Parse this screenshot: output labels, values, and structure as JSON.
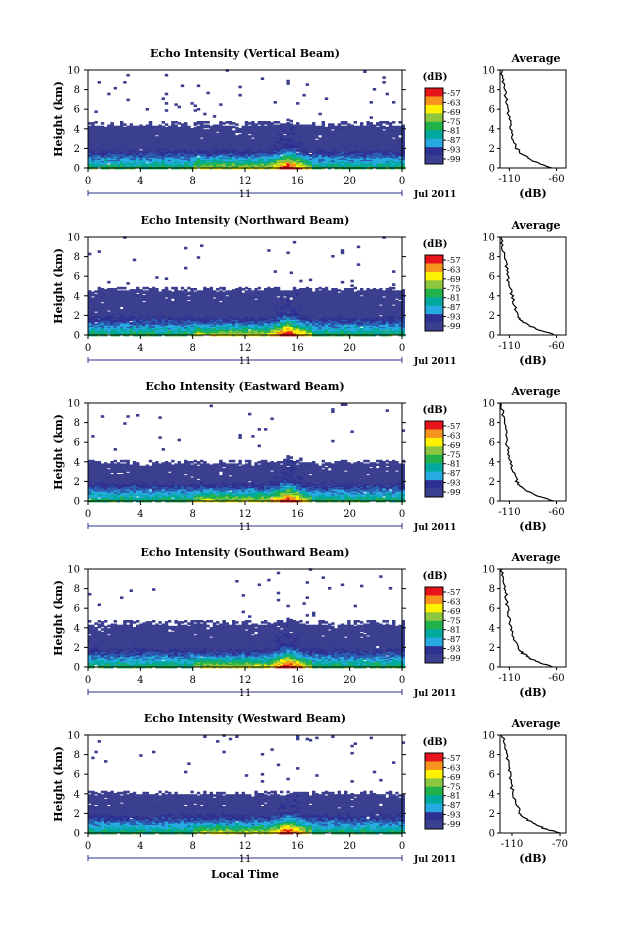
{
  "colorbar": {
    "unit_label": "(dB)",
    "tick_labels": [
      "-57",
      "-63",
      "-69",
      "-75",
      "-81",
      "-87",
      "-93",
      "-99"
    ],
    "colors": [
      "#e8141c",
      "#f7941d",
      "#fff200",
      "#8dc63f",
      "#22b24c",
      "#00a99d",
      "#27aae1",
      "#2e3192",
      "#3b3f8f"
    ]
  },
  "shared_axis": {
    "x_tick_labels": [
      "0",
      "4",
      "8",
      "12",
      "16",
      "20",
      "0"
    ],
    "date_day_label": "11",
    "date_month_label": "Jul 2011",
    "y_label": "Height (km)",
    "y_tick_labels": [
      "0",
      "2",
      "4",
      "6",
      "8",
      "10"
    ],
    "avg_title": "Average",
    "avg_xlabel": "(dB)",
    "x_axis_title": "Local Time"
  },
  "chart_data": [
    {
      "type": "heatmap",
      "title": "Echo Intensity (Vertical Beam)",
      "xlim": [
        0,
        24
      ],
      "ylim": [
        0,
        10
      ],
      "peak": {
        "x": 15.2,
        "y": 4.6
      },
      "layer_top_km": 4.3,
      "average_profile": {
        "type": "line",
        "xlim": [
          -120,
          -50
        ],
        "x_tick_labels": [
          "-110",
          "-60"
        ],
        "y": [
          0,
          0.5,
          1,
          1.5,
          2,
          3,
          4,
          5,
          6,
          7,
          8,
          9,
          10
        ],
        "x": [
          -65,
          -80,
          -90,
          -98,
          -102,
          -106,
          -108,
          -110,
          -112,
          -113,
          -115,
          -117,
          -119
        ]
      }
    },
    {
      "type": "heatmap",
      "title": "Echo Intensity (Northward Beam)",
      "xlim": [
        0,
        24
      ],
      "ylim": [
        0,
        10
      ],
      "peak": {
        "x": 15.2,
        "y": 4.4
      },
      "layer_top_km": 4.5,
      "average_profile": {
        "type": "line",
        "xlim": [
          -120,
          -50
        ],
        "x_tick_labels": [
          "-110",
          "-60"
        ],
        "y": [
          0,
          0.5,
          1,
          1.5,
          2,
          3,
          4,
          5,
          6,
          7,
          8,
          9,
          10
        ],
        "x": [
          -62,
          -78,
          -90,
          -97,
          -101,
          -105,
          -107,
          -110,
          -112,
          -113,
          -115,
          -117,
          -119
        ]
      }
    },
    {
      "type": "heatmap",
      "title": "Echo Intensity (Eastward Beam)",
      "xlim": [
        0,
        24
      ],
      "ylim": [
        0,
        10
      ],
      "peak": {
        "x": 15.2,
        "y": 4.2
      },
      "layer_top_km": 3.8,
      "average_profile": {
        "type": "line",
        "xlim": [
          -120,
          -50
        ],
        "x_tick_labels": [
          "-110",
          "-60"
        ],
        "y": [
          0,
          0.5,
          1,
          1.5,
          2,
          3,
          4,
          5,
          6,
          7,
          8,
          9,
          10
        ],
        "x": [
          -63,
          -80,
          -91,
          -98,
          -102,
          -106,
          -109,
          -111,
          -113,
          -114,
          -115,
          -117,
          -119
        ]
      }
    },
    {
      "type": "heatmap",
      "title": "Echo Intensity (Southward Beam)",
      "xlim": [
        0,
        24
      ],
      "ylim": [
        0,
        10
      ],
      "peak": {
        "x": 15.2,
        "y": 4.6
      },
      "layer_top_km": 4.3,
      "average_profile": {
        "type": "line",
        "xlim": [
          -120,
          -50
        ],
        "x_tick_labels": [
          "-110",
          "-60"
        ],
        "y": [
          0,
          0.5,
          1,
          1.5,
          2,
          3,
          4,
          5,
          6,
          7,
          8,
          9,
          10
        ],
        "x": [
          -64,
          -79,
          -90,
          -97,
          -101,
          -105,
          -108,
          -110,
          -112,
          -113,
          -115,
          -117,
          -119
        ]
      }
    },
    {
      "type": "heatmap",
      "title": "Echo Intensity (Westward Beam)",
      "xlim": [
        0,
        24
      ],
      "ylim": [
        0,
        10
      ],
      "peak": {
        "x": 15.2,
        "y": 3.9
      },
      "layer_top_km": 3.9,
      "average_profile": {
        "type": "line",
        "xlim": [
          -120,
          -65
        ],
        "x_tick_labels": [
          "-110",
          "-70"
        ],
        "y": [
          0,
          0.5,
          1,
          1.5,
          2,
          3,
          4,
          5,
          6,
          7,
          8,
          9,
          10
        ],
        "x": [
          -70,
          -84,
          -93,
          -99,
          -103,
          -106,
          -109,
          -111,
          -112,
          -113,
          -115,
          -116,
          -118
        ]
      }
    }
  ]
}
